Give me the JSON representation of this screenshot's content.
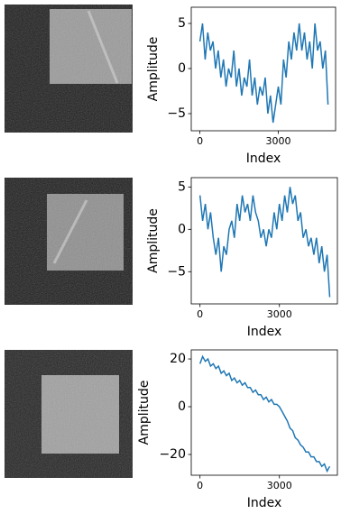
{
  "chart_data": [
    {
      "type": "line",
      "ylabel": "Amplitude",
      "xlabel": "Index",
      "x": [
        0,
        100,
        200,
        300,
        400,
        500,
        600,
        700,
        800,
        900,
        1000,
        1100,
        1200,
        1300,
        1400,
        1500,
        1600,
        1700,
        1800,
        1900,
        2000,
        2100,
        2200,
        2300,
        2400,
        2500,
        2600,
        2700,
        2800,
        2900,
        3000,
        3100,
        3200,
        3300,
        3400,
        3500,
        3600,
        3700,
        3800,
        3900,
        4000,
        4100,
        4200,
        4300,
        4400,
        4500,
        4600,
        4700,
        4800,
        4900
      ],
      "series": [
        {
          "color": "#1f77b4",
          "values": [
            3,
            5,
            1,
            4,
            2,
            3,
            0,
            2,
            -1,
            1,
            -2,
            0,
            -1,
            2,
            -2,
            0,
            -3,
            -1,
            -2,
            1,
            -3,
            -1,
            -4,
            -2,
            -3,
            -1,
            -5,
            -3,
            -6,
            -4,
            -2,
            -4,
            1,
            -1,
            3,
            1,
            4,
            2,
            5,
            2,
            4,
            1,
            3,
            0,
            5,
            2,
            3,
            0,
            2,
            -4
          ]
        }
      ],
      "xlim": [
        -330,
        5190
      ],
      "ylim": [
        -6.9,
        6.8
      ],
      "xticks": [
        0,
        3000
      ],
      "yticks": [
        {
          "value": -5,
          "label": "−5"
        },
        0,
        5
      ]
    },
    {
      "type": "line",
      "ylabel": "Amplitude",
      "xlabel": "Index",
      "x": [
        0,
        100,
        200,
        300,
        400,
        500,
        600,
        700,
        800,
        900,
        1000,
        1100,
        1200,
        1300,
        1400,
        1500,
        1600,
        1700,
        1800,
        1900,
        2000,
        2100,
        2200,
        2300,
        2400,
        2500,
        2600,
        2700,
        2800,
        2900,
        3000,
        3100,
        3200,
        3300,
        3400,
        3500,
        3600,
        3700,
        3800,
        3900,
        4000,
        4100,
        4200,
        4300,
        4400,
        4500,
        4600,
        4700,
        4800,
        4900
      ],
      "series": [
        {
          "color": "#1f77b4",
          "values": [
            4,
            1,
            3,
            0,
            2,
            -1,
            -3,
            -1,
            -5,
            -2,
            -3,
            0,
            1,
            -1,
            3,
            1,
            4,
            2,
            3,
            1,
            4,
            2,
            1,
            -1,
            0,
            -2,
            0,
            -1,
            2,
            0,
            3,
            1,
            4,
            2,
            5,
            3,
            4,
            1,
            2,
            -1,
            0,
            -2,
            -1,
            -3,
            -1,
            -4,
            -2,
            -5,
            -3,
            -8
          ]
        }
      ],
      "xlim": [
        -330,
        5190
      ],
      "ylim": [
        -8.8,
        6.1
      ],
      "xticks": [
        0,
        3000
      ],
      "yticks": [
        {
          "value": -5,
          "label": "−5"
        },
        0,
        5
      ]
    },
    {
      "type": "line",
      "ylabel": "Amplitude",
      "xlabel": "Index",
      "x": [
        0,
        100,
        200,
        300,
        400,
        500,
        600,
        700,
        800,
        900,
        1000,
        1100,
        1200,
        1300,
        1400,
        1500,
        1600,
        1700,
        1800,
        1900,
        2000,
        2100,
        2200,
        2300,
        2400,
        2500,
        2600,
        2700,
        2800,
        2900,
        3000,
        3100,
        3200,
        3300,
        3400,
        3500,
        3600,
        3700,
        3800,
        3900,
        4000,
        4100,
        4200,
        4300,
        4400,
        4500,
        4600,
        4700,
        4800,
        4900
      ],
      "series": [
        {
          "color": "#1f77b4",
          "values": [
            18,
            21,
            19,
            20,
            17,
            18,
            16,
            17,
            14,
            15,
            13,
            14,
            11,
            12,
            10,
            11,
            9,
            10,
            8,
            8,
            6,
            7,
            5,
            5,
            3,
            4,
            2,
            3,
            1,
            1,
            0,
            -2,
            -4,
            -6,
            -9,
            -10,
            -13,
            -14,
            -16,
            -17,
            -19,
            -19,
            -21,
            -21,
            -23,
            -23,
            -25,
            -24,
            -27,
            -25
          ]
        }
      ],
      "xlim": [
        -330,
        5190
      ],
      "ylim": [
        -28.7,
        23.8
      ],
      "xticks": [
        0,
        3000
      ],
      "yticks": [
        {
          "value": -20,
          "label": "−20"
        },
        0,
        20
      ]
    }
  ]
}
